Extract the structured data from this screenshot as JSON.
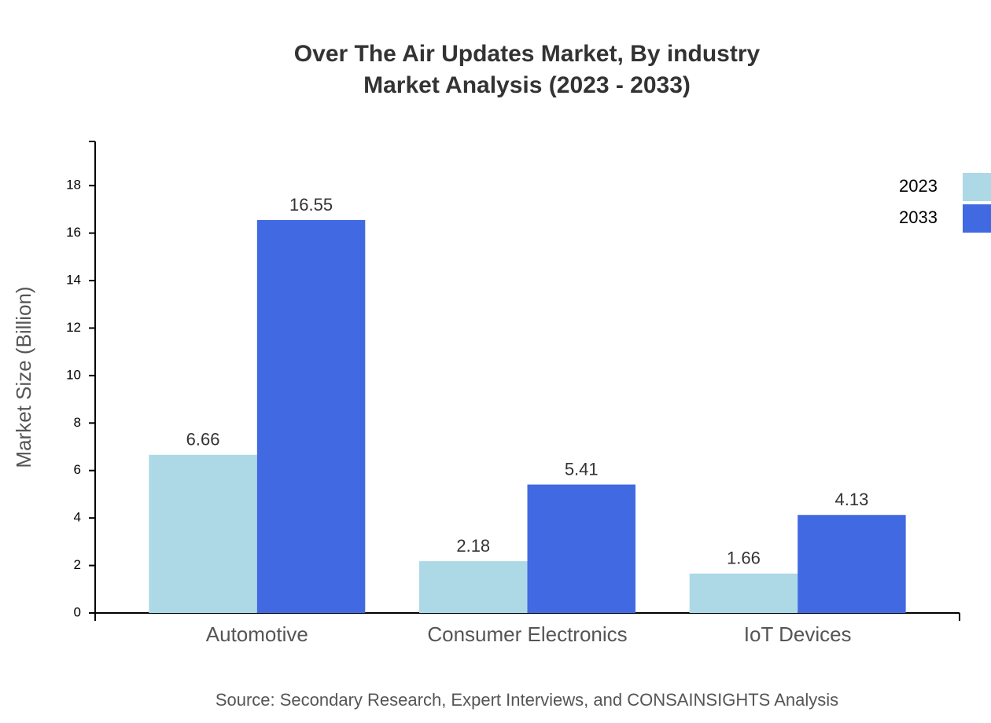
{
  "chart_data": {
    "type": "bar",
    "title": "Over The Air Updates Market, By industry",
    "subtitle": "Market Analysis (2023 - 2033)",
    "y_label": "Market Size (Billion)",
    "source": "Source: Secondary Research, Expert Interviews, and CONSAINSIGHTS Analysis",
    "categories": [
      "Automotive",
      "Consumer Electronics",
      "IoT Devices"
    ],
    "series": [
      {
        "name": "2023",
        "color": "#add8e6",
        "values": [
          6.66,
          2.18,
          1.66
        ]
      },
      {
        "name": "2033",
        "color": "#4169e1",
        "values": [
          16.55,
          5.41,
          4.13
        ]
      }
    ],
    "ylim": [
      0,
      19.86
    ],
    "yticks": [
      0,
      2,
      4,
      6,
      8,
      10,
      12,
      14,
      16,
      18
    ],
    "legend": "top-right",
    "grid": false
  }
}
